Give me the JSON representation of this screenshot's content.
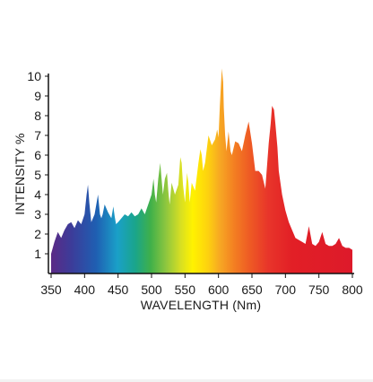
{
  "chart_data": {
    "type": "area",
    "xlabel": "WAVELENGTH (Nm)",
    "ylabel": "INTENSITY %",
    "xlim": [
      350,
      800
    ],
    "ylim": [
      0,
      10
    ],
    "x_ticks": [
      "350",
      "400",
      "450",
      "500",
      "550",
      "600",
      "650",
      "700",
      "750",
      "800"
    ],
    "y_ticks": [
      "1",
      "2",
      "3",
      "4",
      "5",
      "6",
      "7",
      "8",
      "9",
      "10"
    ],
    "fill": "visible-spectrum gradient (violet to deep red)",
    "grid": false,
    "series": [
      {
        "x": [
          350,
          355,
          360,
          365,
          370,
          375,
          380,
          385,
          390,
          395,
          400,
          403,
          405,
          407,
          410,
          415,
          420,
          423,
          425,
          427,
          430,
          435,
          440,
          443,
          445,
          447,
          450,
          455,
          460,
          465,
          470,
          475,
          480,
          485,
          490,
          495,
          500,
          503,
          505,
          507,
          510,
          513,
          515,
          517,
          520,
          523,
          525,
          527,
          530,
          535,
          540,
          543,
          545,
          547,
          550,
          553,
          555,
          557,
          560,
          565,
          570,
          573,
          575,
          577,
          580,
          585,
          590,
          595,
          598,
          600,
          602,
          605,
          607,
          608,
          610,
          612,
          615,
          618,
          620,
          625,
          630,
          635,
          640,
          645,
          650,
          655,
          660,
          665,
          670,
          675,
          678,
          680,
          683,
          685,
          688,
          690,
          695,
          700,
          705,
          710,
          715,
          720,
          725,
          730,
          735,
          740,
          745,
          750,
          755,
          760,
          765,
          770,
          775,
          780,
          785,
          790,
          795,
          800
        ],
        "y": [
          1.0,
          1.6,
          2.1,
          1.8,
          2.2,
          2.5,
          2.6,
          2.3,
          2.7,
          2.5,
          3.0,
          4.0,
          4.5,
          3.6,
          2.6,
          3.0,
          4.0,
          3.0,
          2.8,
          3.0,
          3.5,
          3.1,
          2.8,
          3.4,
          2.9,
          2.5,
          2.6,
          2.8,
          3.0,
          2.9,
          3.1,
          2.9,
          3.0,
          3.3,
          3.0,
          3.5,
          4.0,
          4.8,
          4.0,
          3.6,
          4.8,
          5.6,
          4.8,
          4.0,
          4.8,
          5.1,
          4.2,
          3.5,
          4.6,
          4.0,
          4.5,
          5.9,
          5.6,
          4.5,
          3.6,
          5.1,
          4.6,
          3.6,
          4.6,
          4.2,
          5.6,
          6.3,
          6.0,
          5.2,
          5.6,
          7.0,
          6.5,
          6.8,
          7.3,
          6.9,
          8.5,
          10.4,
          9.7,
          8.4,
          7.0,
          6.2,
          7.2,
          6.2,
          6.0,
          6.7,
          6.6,
          6.2,
          7.0,
          7.7,
          6.6,
          5.2,
          5.2,
          5.0,
          4.3,
          6.6,
          7.6,
          8.5,
          8.3,
          7.6,
          6.4,
          5.2,
          4.0,
          3.2,
          2.6,
          2.2,
          1.8,
          1.7,
          1.6,
          1.5,
          2.4,
          1.5,
          1.4,
          1.6,
          2.1,
          1.5,
          1.4,
          1.4,
          1.5,
          1.8,
          1.4,
          1.3,
          1.3,
          1.2
        ]
      }
    ]
  }
}
